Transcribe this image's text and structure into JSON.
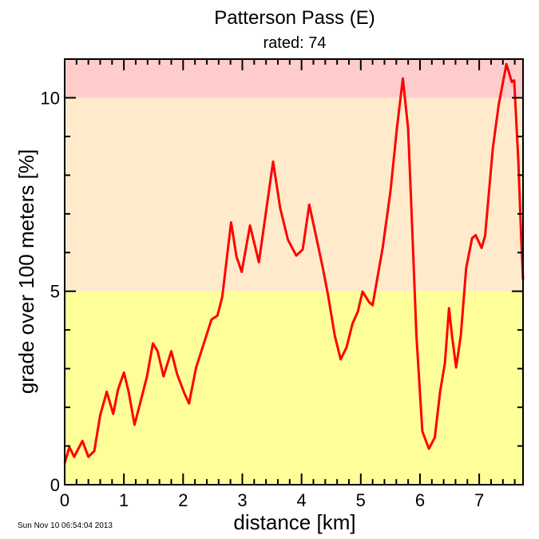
{
  "chart_data": {
    "type": "line",
    "title": "Patterson Pass (E)",
    "subtitle": "rated: 74",
    "xlabel": "distance [km]",
    "ylabel": "grade over 100 meters [%]",
    "xlim": [
      0,
      7.74
    ],
    "ylim": [
      0,
      11
    ],
    "xticks": [
      0,
      1,
      2,
      3,
      4,
      5,
      6,
      7
    ],
    "yticks": [
      0,
      5,
      10
    ],
    "x_minor_step": 0.2,
    "y_minor_step": 1,
    "grid": false,
    "bands": [
      {
        "from": 0,
        "to": 5,
        "color": "#ffff99"
      },
      {
        "from": 5,
        "to": 10,
        "color": "#ffebcc"
      },
      {
        "from": 10,
        "to": 11,
        "color": "#ffcccc"
      }
    ],
    "line_color": "#ff0000",
    "series": [
      {
        "x": [
          0,
          0.08,
          0.16,
          0.3,
          0.4,
          0.5,
          0.6,
          0.71,
          0.82,
          0.9,
          1.0,
          1.08,
          1.18,
          1.29,
          1.39,
          1.49,
          1.57,
          1.67,
          1.8,
          1.9,
          2.02,
          2.1,
          2.22,
          2.35,
          2.48,
          2.58,
          2.66,
          2.81,
          2.9,
          2.99,
          3.13,
          3.28,
          3.52,
          3.64,
          3.77,
          3.91,
          4.02,
          4.13,
          4.23,
          4.36,
          4.45,
          4.56,
          4.66,
          4.76,
          4.86,
          4.95,
          5.03,
          5.14,
          5.2,
          5.37,
          5.5,
          5.61,
          5.71,
          5.8,
          5.85,
          5.94,
          6.04,
          6.15,
          6.25,
          6.34,
          6.42,
          6.49,
          6.54,
          6.61,
          6.69,
          6.78,
          6.88,
          6.94,
          7.04,
          7.1,
          7.23,
          7.33,
          7.46,
          7.55,
          7.59,
          7.66,
          7.71,
          7.74
        ],
        "y": [
          0.56,
          0.97,
          0.72,
          1.13,
          0.72,
          0.87,
          1.8,
          2.4,
          1.83,
          2.45,
          2.9,
          2.4,
          1.55,
          2.2,
          2.8,
          3.65,
          3.45,
          2.8,
          3.45,
          2.85,
          2.37,
          2.1,
          3.03,
          3.65,
          4.27,
          4.37,
          4.85,
          6.78,
          5.9,
          5.5,
          6.7,
          5.75,
          8.35,
          7.15,
          6.33,
          5.92,
          6.08,
          7.24,
          6.53,
          5.6,
          4.88,
          3.86,
          3.24,
          3.55,
          4.16,
          4.47,
          4.99,
          4.72,
          4.64,
          6.12,
          7.57,
          9.2,
          10.5,
          9.2,
          7.36,
          3.86,
          1.38,
          0.93,
          1.22,
          2.41,
          3.13,
          4.56,
          3.86,
          3.03,
          3.86,
          5.6,
          6.37,
          6.45,
          6.12,
          6.43,
          8.7,
          9.83,
          10.87,
          10.41,
          10.45,
          8.39,
          6.33,
          5.3
        ]
      }
    ]
  },
  "footer": {
    "timestamp": "Sun Nov 10 06:54:04 2013"
  }
}
